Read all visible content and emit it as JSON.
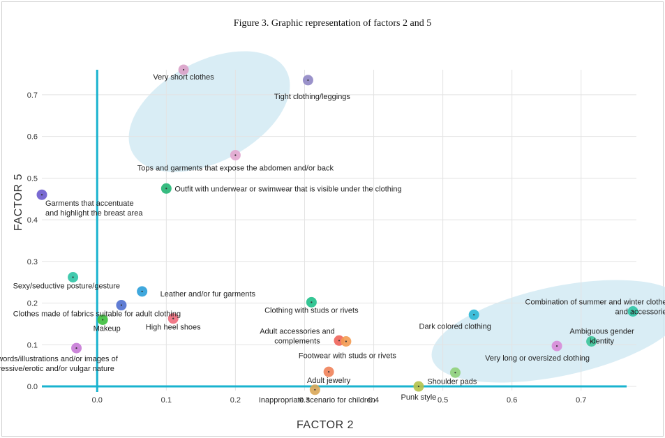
{
  "chart_data": {
    "type": "scatter",
    "title": "Figure 3. Graphic representation of factors 2 and 5",
    "xlabel": "FACTOR 2",
    "ylabel": "FACTOR 5",
    "xlim": [
      -0.08,
      0.78
    ],
    "ylim": [
      -0.01,
      0.76
    ],
    "xticks": [
      "0.0",
      "0.1",
      "0.2",
      "0.3",
      "0.4",
      "0.5",
      "0.6",
      "0.7"
    ],
    "yticks": [
      "0.0",
      "0.1",
      "0.2",
      "0.3",
      "0.4",
      "0.5",
      "0.6",
      "0.7"
    ],
    "grid": true,
    "points": [
      {
        "label": "Very short clothes",
        "x": 0.125,
        "y": 0.76,
        "color": "#d9a0c8"
      },
      {
        "label": "Tight clothing/leggings",
        "x": 0.305,
        "y": 0.735,
        "color": "#8f86c4"
      },
      {
        "label": "Tops and garments that expose the abdomen and/or back",
        "x": 0.2,
        "y": 0.555,
        "color": "#e2a6cf"
      },
      {
        "label": "Outfit with underwear or swimwear that is visible under the clothing",
        "x": 0.1,
        "y": 0.475,
        "color": "#22b573"
      },
      {
        "label": "Garments that accentuate and highlight the breast area",
        "x": -0.08,
        "y": 0.46,
        "color": "#6a5acd"
      },
      {
        "label": "Sexy/seductive posture/gesture",
        "x": -0.035,
        "y": 0.262,
        "color": "#2ec4a5"
      },
      {
        "label": "Leather and/or fur garments",
        "x": 0.065,
        "y": 0.228,
        "color": "#2b9fd9"
      },
      {
        "label": "Clothes made of fabrics suitable for adult clothing",
        "x": 0.035,
        "y": 0.195,
        "color": "#4f6fcf"
      },
      {
        "label": "Makeup",
        "x": 0.008,
        "y": 0.16,
        "color": "#3cbf3c"
      },
      {
        "label": "High heel shoes",
        "x": 0.11,
        "y": 0.163,
        "color": "#f06c7c"
      },
      {
        "label": "Clothing with words/illustrations and/or images of a sexual/aggressive/erotic and/or vulgar nature",
        "x": -0.03,
        "y": 0.092,
        "color": "#c77ad6"
      },
      {
        "label": "Clothing with studs or rivets",
        "x": 0.31,
        "y": 0.202,
        "color": "#20c08a"
      },
      {
        "label": "Adult accessories and complements",
        "x": 0.35,
        "y": 0.11,
        "color": "#f0645a"
      },
      {
        "label": "Footwear with studs or rivets",
        "x": 0.36,
        "y": 0.108,
        "color": "#f39b52"
      },
      {
        "label": "Adult jewelry",
        "x": 0.335,
        "y": 0.035,
        "color": "#f0825a"
      },
      {
        "label": "Inappropriate scenario for children",
        "x": 0.315,
        "y": -0.008,
        "color": "#d9a656"
      },
      {
        "label": "Punk style",
        "x": 0.465,
        "y": 0.0,
        "color": "#b6c24a"
      },
      {
        "label": "Shoulder pads",
        "x": 0.518,
        "y": 0.033,
        "color": "#8fd07a"
      },
      {
        "label": "Dark colored clothing",
        "x": 0.545,
        "y": 0.172,
        "color": "#2bb7d6"
      },
      {
        "label": "Combination of summer and winter clothes and accessories",
        "x": 0.775,
        "y": 0.18,
        "color": "#2ec4a5"
      },
      {
        "label": "Ambiguous gender identity",
        "x": 0.715,
        "y": 0.108,
        "color": "#3cc49a"
      },
      {
        "label": "Very long or oversized clothing",
        "x": 0.665,
        "y": 0.097,
        "color": "#d78ad8"
      }
    ],
    "clusters": [
      {
        "name": "upper-cluster",
        "color": "#cfe8f3"
      },
      {
        "name": "right-cluster",
        "color": "#cfe8f3"
      }
    ]
  }
}
